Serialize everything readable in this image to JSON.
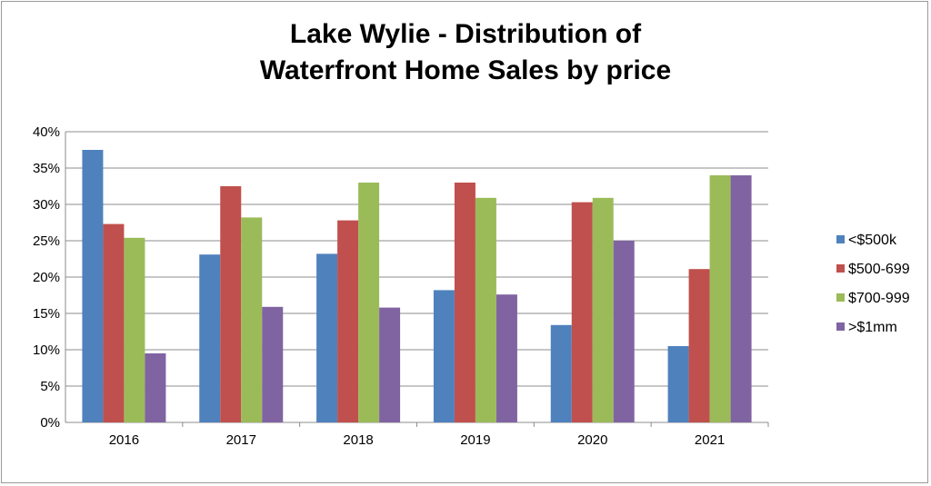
{
  "chart_data": {
    "type": "bar",
    "title_line1": "Lake Wylie - Distribution of",
    "title_line2": "Waterfront Home Sales by price",
    "categories": [
      "2016",
      "2017",
      "2018",
      "2019",
      "2020",
      "2021"
    ],
    "series": [
      {
        "name": "<$500k",
        "color": "#4f81bd",
        "values": [
          37.5,
          23.1,
          23.2,
          18.2,
          13.4,
          10.5
        ]
      },
      {
        "name": "$500-699",
        "color": "#c0504d",
        "values": [
          27.3,
          32.5,
          27.8,
          33.0,
          30.3,
          21.1
        ]
      },
      {
        "name": "$700-999",
        "color": "#9bbb59",
        "values": [
          25.4,
          28.2,
          33.0,
          30.9,
          30.9,
          34.0
        ]
      },
      {
        "name": ">$1mm",
        "color": "#8064a2",
        "values": [
          9.5,
          15.9,
          15.8,
          17.6,
          25.0,
          34.0
        ]
      }
    ],
    "yticks": [
      "0%",
      "5%",
      "10%",
      "15%",
      "20%",
      "25%",
      "30%",
      "35%",
      "40%"
    ],
    "ylim": [
      0,
      40
    ],
    "grid": true,
    "legend_position": "right"
  }
}
